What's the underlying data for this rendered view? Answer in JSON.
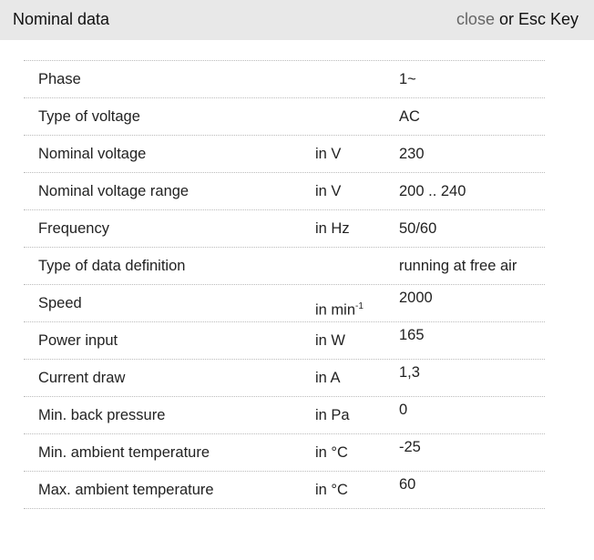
{
  "header": {
    "title": "Nominal data",
    "close_link": "close",
    "close_suffix": " or Esc Key"
  },
  "rows": [
    {
      "label": "Phase",
      "unit": "",
      "value": "1~"
    },
    {
      "label": "Type of voltage",
      "unit": "",
      "value": "AC"
    },
    {
      "label": "Nominal voltage",
      "unit": "in V",
      "value": "230"
    },
    {
      "label": "Nominal voltage range",
      "unit": "in V",
      "value": "200 .. 240"
    },
    {
      "label": "Frequency",
      "unit": "in Hz",
      "value": "50/60"
    },
    {
      "label": "Type of data definition",
      "unit": "",
      "value": "running at free air"
    },
    {
      "label": "Speed",
      "unit": "in min",
      "unit_sup": "-1",
      "value": "2000"
    },
    {
      "label": "Power input",
      "unit": "in W",
      "value": "165"
    },
    {
      "label": "Current draw",
      "unit": "in A",
      "value": "1,3"
    },
    {
      "label": "Min. back pressure",
      "unit": "in Pa",
      "value": "0"
    },
    {
      "label": "Min. ambient temperature",
      "unit": "in °C",
      "value": "-25"
    },
    {
      "label": "Max. ambient temperature",
      "unit": "in °C",
      "value": "60"
    }
  ]
}
